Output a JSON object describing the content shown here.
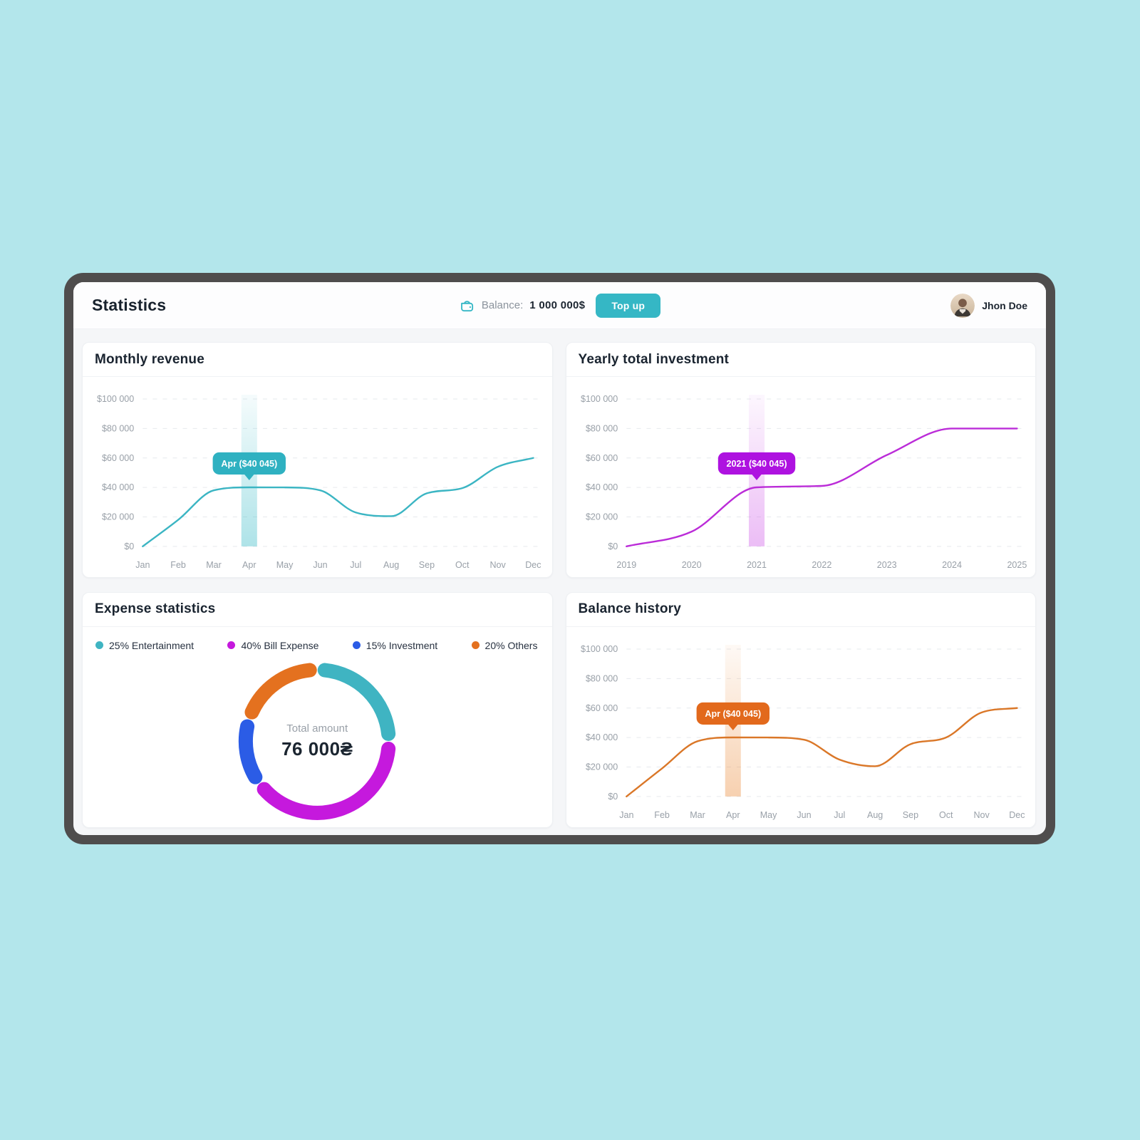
{
  "header": {
    "title": "Statistics",
    "balance": {
      "label": "Balance:",
      "value": "1 000 000$",
      "wallet_icon": "wallet-icon"
    },
    "topup_button": "Top up",
    "user": {
      "name": "Jhon Doe"
    },
    "accent_color": "#35b7c5"
  },
  "chart_data": [
    {
      "id": "monthly-revenue",
      "type": "line",
      "title": "Monthly revenue",
      "x": [
        "Jan",
        "Feb",
        "Mar",
        "Apr",
        "May",
        "Jun",
        "Jul",
        "Aug",
        "Sep",
        "Oct",
        "Nov",
        "Dec"
      ],
      "values": [
        0,
        18000,
        38000,
        40045,
        40000,
        38000,
        23000,
        20500,
        36000,
        39500,
        54000,
        60000
      ],
      "ylim": [
        0,
        100000
      ],
      "yticks": [
        0,
        20000,
        40000,
        60000,
        80000,
        100000
      ],
      "ytick_labels": [
        "$0",
        "$20 000",
        "$40 000",
        "$60 000",
        "$80 000",
        "$100 000"
      ],
      "grid": "horizontal-dashed",
      "line_color": "#3bb5c3",
      "band_color": "#35b9c6",
      "highlight": {
        "index": 3,
        "value": 40045,
        "label": "Apr ($40 045)",
        "bubble_color": "#2fb1c1"
      }
    },
    {
      "id": "yearly-investment",
      "type": "line",
      "title": "Yearly total investment",
      "x": [
        "2019",
        "2020",
        "2021",
        "2022",
        "2023",
        "2024",
        "2025"
      ],
      "values": [
        0,
        10000,
        40045,
        41000,
        62000,
        80000,
        80000
      ],
      "ylim": [
        0,
        100000
      ],
      "yticks": [
        0,
        20000,
        40000,
        60000,
        80000,
        100000
      ],
      "ytick_labels": [
        "$0",
        "$20 000",
        "$40 000",
        "$60 000",
        "$80 000",
        "$100 000"
      ],
      "grid": "horizontal-dashed",
      "line_color": "#bb2cd8",
      "band_color": "#cf5ae8",
      "highlight": {
        "index": 2,
        "value": 40045,
        "label": "2021 ($40 045)",
        "bubble_color": "#ae12e0"
      }
    },
    {
      "id": "expense-statistics",
      "type": "donut",
      "title": "Expense statistics",
      "segments": [
        {
          "name": "entertainment",
          "label": "25% Entertainment",
          "pct": 25,
          "color": "#3fb4c2"
        },
        {
          "name": "bill-expense",
          "label": "40% Bill Expense",
          "pct": 40,
          "color": "#c519dd"
        },
        {
          "name": "investment",
          "label": "15% Investment",
          "pct": 15,
          "color": "#2b5ce6"
        },
        {
          "name": "others",
          "label": "20% Others",
          "pct": 20,
          "color": "#e4711f"
        }
      ],
      "center_label": "Total amount",
      "center_value": "76 000₴",
      "legend_position": "top"
    },
    {
      "id": "balance-history",
      "type": "line",
      "title": "Balance history",
      "x": [
        "Jan",
        "Feb",
        "Mar",
        "Apr",
        "May",
        "Jun",
        "Jul",
        "Aug",
        "Sep",
        "Oct",
        "Nov",
        "Dec"
      ],
      "values": [
        0,
        19000,
        37500,
        40045,
        40000,
        38500,
        25000,
        20500,
        35500,
        40000,
        57000,
        60000
      ],
      "ylim": [
        0,
        100000
      ],
      "yticks": [
        0,
        20000,
        40000,
        60000,
        80000,
        100000
      ],
      "ytick_labels": [
        "$0",
        "$20 000",
        "$40 000",
        "$60 000",
        "$80 000",
        "$100 000"
      ],
      "grid": "horizontal-dashed",
      "line_color": "#da7728",
      "band_color": "#eb8b3a",
      "highlight": {
        "index": 3,
        "value": 40045,
        "label": "Apr ($40 045)",
        "bubble_color": "#e2691c"
      }
    }
  ]
}
